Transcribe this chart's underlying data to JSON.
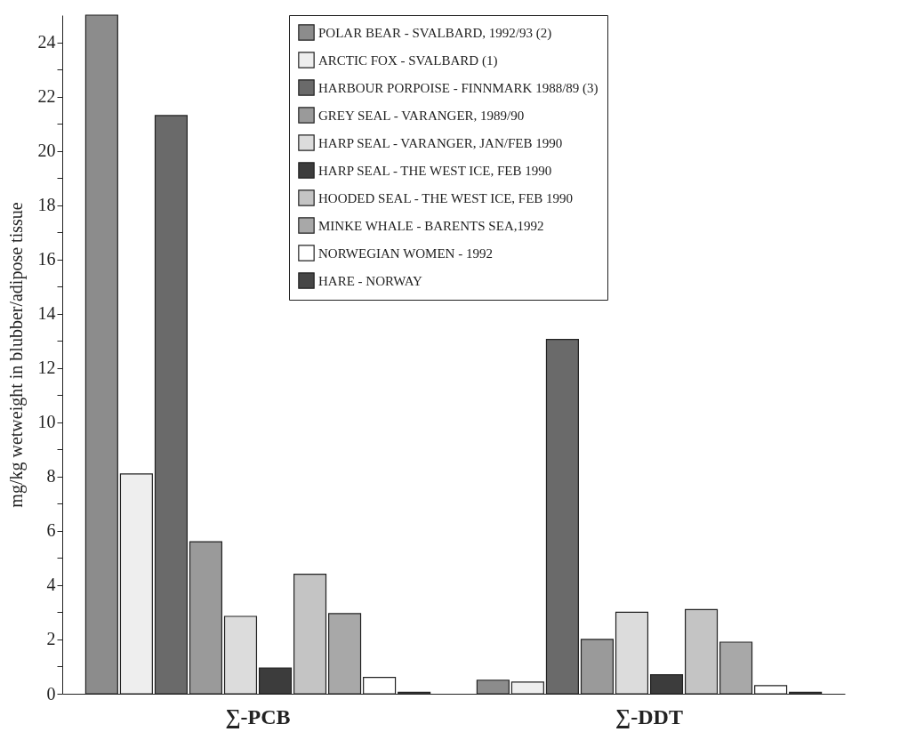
{
  "chart_data": {
    "type": "bar",
    "ylabel": "mg/kg wetweight in blubber/adipose tissue",
    "categories": [
      "∑-PCB",
      "∑-DDT"
    ],
    "series": [
      {
        "name": "POLAR BEAR - SVALBARD, 1992/93 (2)",
        "color": "#8c8c8c",
        "values": [
          25.0,
          0.5
        ]
      },
      {
        "name": "ARCTIC FOX - SVALBARD (1)",
        "color": "#eeeeee",
        "values": [
          8.1,
          0.43
        ]
      },
      {
        "name": "HARBOUR PORPOISE - FINNMARK 1988/89 (3)",
        "color": "#6a6a6a",
        "values": [
          21.3,
          13.05
        ]
      },
      {
        "name": "GREY SEAL - VARANGER, 1989/90",
        "color": "#9a9a9a",
        "values": [
          5.6,
          2.0
        ]
      },
      {
        "name": "HARP SEAL - VARANGER, JAN/FEB 1990",
        "color": "#dcdcdc",
        "values": [
          2.85,
          3.0
        ]
      },
      {
        "name": "HARP SEAL - THE WEST ICE, FEB 1990",
        "color": "#3c3c3c",
        "values": [
          0.95,
          0.7
        ]
      },
      {
        "name": "HOODED SEAL - THE WEST ICE, FEB 1990",
        "color": "#c4c4c4",
        "values": [
          4.4,
          3.1
        ]
      },
      {
        "name": "MINKE WHALE -  BARENTS SEA,1992",
        "color": "#a8a8a8",
        "values": [
          2.95,
          1.9
        ]
      },
      {
        "name": "NORWEGIAN WOMEN - 1992",
        "color": "#ffffff",
        "values": [
          0.6,
          0.3
        ]
      },
      {
        "name": "HARE - NORWAY",
        "color": "#474747",
        "values": [
          0.05,
          0.05
        ]
      }
    ],
    "ylim": [
      0,
      25
    ],
    "yticks": [
      0,
      {
        "value": 1,
        "label": null
      },
      2,
      {
        "value": 3,
        "label": null
      },
      4,
      {
        "value": 5,
        "label": null
      },
      6,
      {
        "value": 7,
        "label": null
      },
      8,
      {
        "value": 9,
        "label": null
      },
      10,
      {
        "value": 11,
        "label": null
      },
      12,
      {
        "value": 13,
        "label": null
      },
      14,
      {
        "value": 15,
        "label": null
      },
      16,
      {
        "value": 17,
        "label": null
      },
      18,
      {
        "value": 19,
        "label": null
      },
      20,
      {
        "value": 21,
        "label": null
      },
      22,
      {
        "value": 23,
        "label": null
      },
      24
    ],
    "legend": "top",
    "grid": false
  }
}
